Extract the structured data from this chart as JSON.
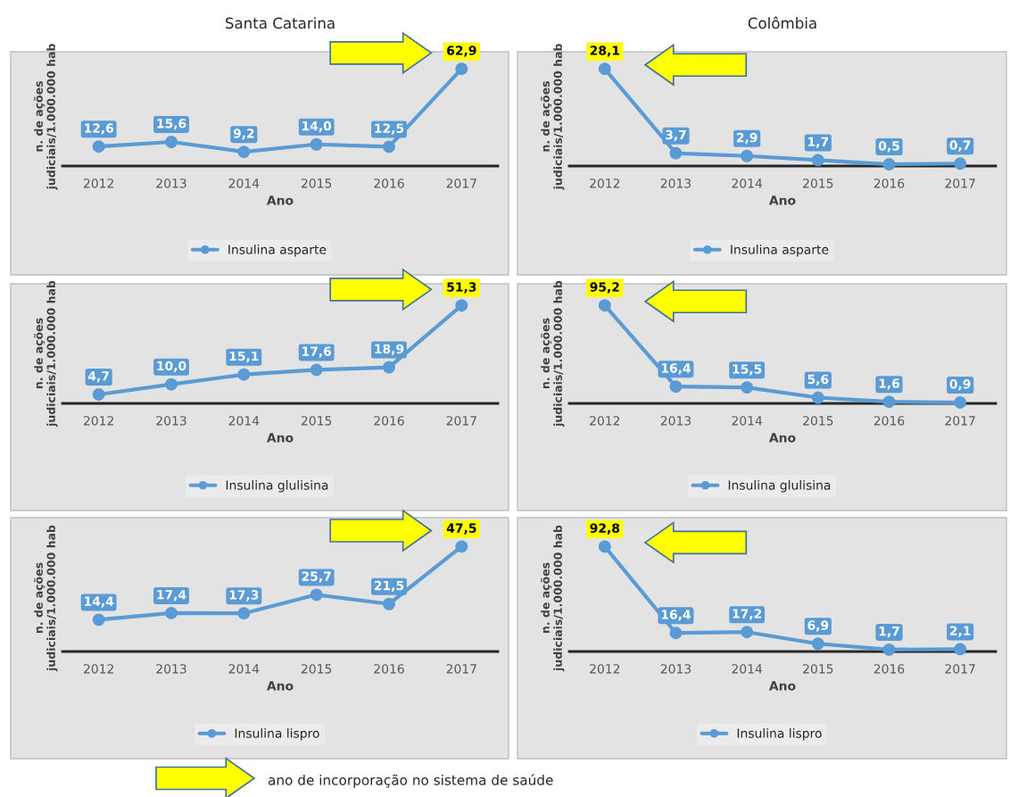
{
  "chart_data": [
    {
      "type": "line",
      "title": "Santa Catarina",
      "xlabel": "Ano",
      "ylabel": "n. de ações\njudiciais/1.000.000 hab",
      "categories": [
        "2012",
        "2013",
        "2014",
        "2015",
        "2016",
        "2017"
      ],
      "series": [
        {
          "name": "Insulina asparte",
          "color": "#5b9bd5",
          "values": [
            12.6,
            15.6,
            9.2,
            14.0,
            12.5,
            62.9
          ],
          "value_labels": [
            "12,6",
            "15,6",
            "9,2",
            "14,0",
            "12,5",
            "62,9"
          ]
        }
      ],
      "legend": "bottom",
      "marker": "circle",
      "annotations": [
        "ano de incorporação no sistema de saúde"
      ]
    },
    {
      "type": "line",
      "title": "Colômbia",
      "xlabel": "Ano",
      "ylabel": "n. de ações\njudiciais/1.000.000 hab",
      "categories": [
        "2012",
        "2013",
        "2014",
        "2015",
        "2016",
        "2017"
      ],
      "series": [
        {
          "name": "Insulina asparte",
          "color": "#5b9bd5",
          "values": [
            28.1,
            3.7,
            2.9,
            1.7,
            0.5,
            0.7
          ],
          "value_labels": [
            "28,1",
            "3,7",
            "2,9",
            "1,7",
            "0,5",
            "0,7"
          ]
        }
      ],
      "legend": "bottom",
      "marker": "circle"
    },
    {
      "type": "line",
      "xlabel": "Ano",
      "ylabel": "n. de ações\njudiciais/1.000.000 hab",
      "categories": [
        "2012",
        "2013",
        "2014",
        "2015",
        "2016",
        "2017"
      ],
      "series": [
        {
          "name": "Insulina glulisina",
          "color": "#5b9bd5",
          "values": [
            4.7,
            10.0,
            15.1,
            17.6,
            18.9,
            51.3
          ],
          "value_labels": [
            "4,7",
            "10,0",
            "15,1",
            "17,6",
            "18,9",
            "51,3"
          ]
        }
      ],
      "legend": "bottom",
      "marker": "circle"
    },
    {
      "type": "line",
      "xlabel": "Ano",
      "ylabel": "n. de ações\njudiciais/1.000.000 hab",
      "categories": [
        "2012",
        "2013",
        "2014",
        "2015",
        "2016",
        "2017"
      ],
      "series": [
        {
          "name": "Insulina glulisina",
          "color": "#5b9bd5",
          "values": [
            95.2,
            16.4,
            15.5,
            5.6,
            1.6,
            0.9
          ],
          "value_labels": [
            "95,2",
            "16,4",
            "15,5",
            "5,6",
            "1,6",
            "0,9"
          ]
        }
      ],
      "legend": "bottom",
      "marker": "circle"
    },
    {
      "type": "line",
      "xlabel": "Ano",
      "ylabel": "n. de ações\njudiciais/1.000.000 hab",
      "categories": [
        "2012",
        "2013",
        "2014",
        "2015",
        "2016",
        "2017"
      ],
      "series": [
        {
          "name": "Insulina lispro",
          "color": "#5b9bd5",
          "values": [
            14.4,
            17.4,
            17.3,
            25.7,
            21.5,
            47.5
          ],
          "value_labels": [
            "14,4",
            "17,4",
            "17,3",
            "25,7",
            "21,5",
            "47,5"
          ]
        }
      ],
      "legend": "bottom",
      "marker": "circle"
    },
    {
      "type": "line",
      "xlabel": "Ano",
      "ylabel": "n. de ações\njudiciais/1.000.000 hab",
      "categories": [
        "2012",
        "2013",
        "2014",
        "2015",
        "2016",
        "2017"
      ],
      "series": [
        {
          "name": "Insulina lispro",
          "color": "#5b9bd5",
          "values": [
            92.8,
            16.4,
            17.2,
            6.9,
            1.7,
            2.1
          ],
          "value_labels": [
            "92,8",
            "16,4",
            "17,2",
            "6,9",
            "1,7",
            "2,1"
          ]
        }
      ],
      "legend": "bottom",
      "marker": "circle"
    }
  ]
}
